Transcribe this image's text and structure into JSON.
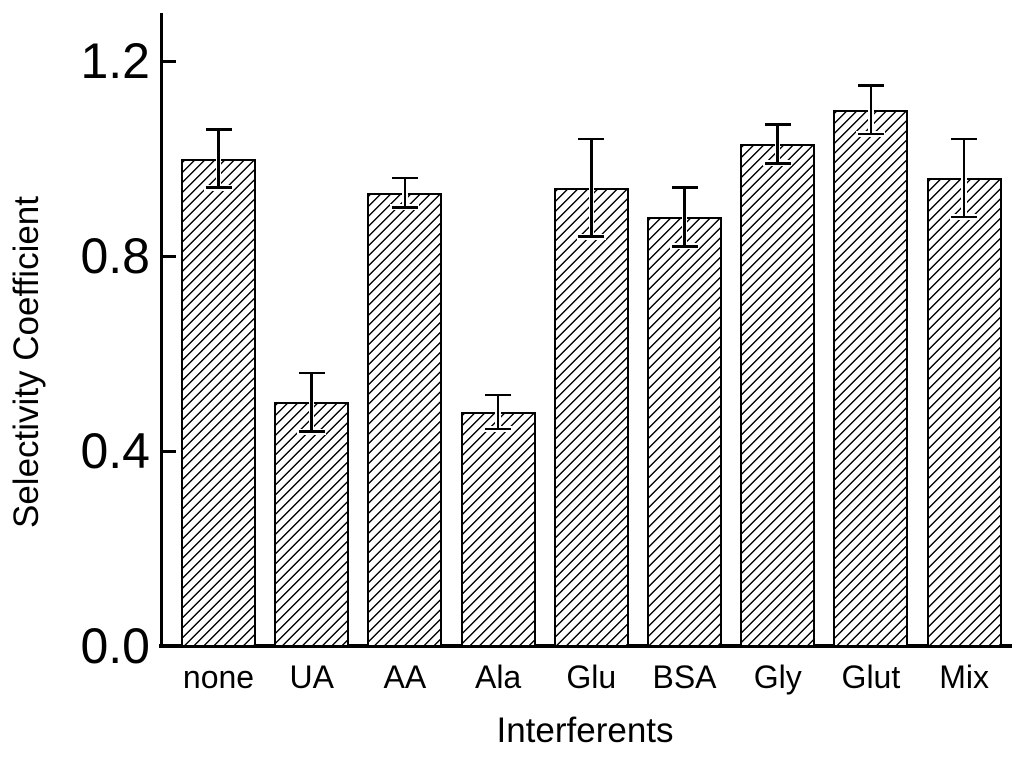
{
  "chart_data": {
    "type": "bar",
    "title": "",
    "xlabel": "Interferents",
    "ylabel": "Selectivity Coefficient",
    "categories": [
      "none",
      "UA",
      "AA",
      "Ala",
      "Glu",
      "BSA",
      "Gly",
      "Glut",
      "Mix"
    ],
    "values": [
      1.0,
      0.5,
      0.93,
      0.48,
      0.94,
      0.88,
      1.03,
      1.1,
      0.96
    ],
    "errors": [
      0.06,
      0.06,
      0.03,
      0.035,
      0.1,
      0.06,
      0.04,
      0.05,
      0.08
    ],
    "yticks": [
      0.0,
      0.4,
      0.8,
      1.2
    ],
    "ytick_labels": [
      "0.0",
      "0.4",
      "0.8",
      "1.2"
    ],
    "ylim": [
      0,
      1.3
    ],
    "grid": false,
    "legend": false,
    "error_bars": true,
    "bar_style": {
      "fill": "#ffffff",
      "hatch": "diagonal-forward-45deg",
      "edge_color": "#000000"
    }
  },
  "colors": {
    "background": "#ffffff",
    "axis": "#000000",
    "text": "#000000"
  }
}
